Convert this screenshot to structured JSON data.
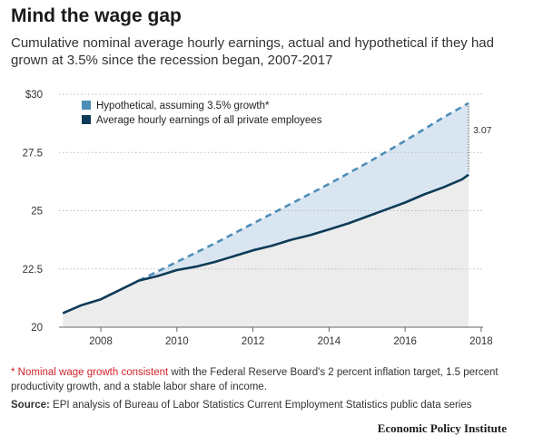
{
  "header": {
    "title": "Mind the wage gap",
    "subtitle": "Cumulative nominal average hourly earnings, actual and hypothetical if they had grown at 3.5% since the recession began, 2007-2017"
  },
  "colors": {
    "actual": "#0d3b57",
    "hypothetical": "#4e8db8",
    "gap_fill": "#d9e6f1",
    "under_fill": "#ececec",
    "gap_label_line": "#555555",
    "note_red": "#d0232a"
  },
  "chart_data": {
    "type": "line",
    "title": "Mind the wage gap",
    "xlabel": "",
    "ylabel": "",
    "xlim": [
      2006.9,
      2018.05
    ],
    "ylim": [
      20,
      30
    ],
    "x_ticks": [
      2008,
      2010,
      2012,
      2014,
      2016,
      2018
    ],
    "y_ticks": [
      {
        "value": 20,
        "label": "20"
      },
      {
        "value": 22.5,
        "label": "22.5"
      },
      {
        "value": 25,
        "label": "25"
      },
      {
        "value": 27.5,
        "label": "27.5"
      },
      {
        "value": 30,
        "label": "$30"
      }
    ],
    "grid": "horizontal-dotted",
    "legend": {
      "position": "top-left",
      "entries": [
        {
          "label": "Hypothetical, assuming 3.5% growth*",
          "series": "hypothetical"
        },
        {
          "label": "Average hourly earnings of all private employees",
          "series": "actual"
        }
      ]
    },
    "series": [
      {
        "name": "Average hourly earnings of all private employees",
        "style": "solid",
        "points": [
          [
            2007.0,
            20.6
          ],
          [
            2007.5,
            20.95
          ],
          [
            2008.0,
            21.2
          ],
          [
            2008.5,
            21.6
          ],
          [
            2009.0,
            22.0
          ],
          [
            2009.5,
            22.2
          ],
          [
            2010.0,
            22.45
          ],
          [
            2010.5,
            22.6
          ],
          [
            2011.0,
            22.8
          ],
          [
            2011.5,
            23.05
          ],
          [
            2012.0,
            23.3
          ],
          [
            2012.5,
            23.5
          ],
          [
            2013.0,
            23.75
          ],
          [
            2013.5,
            23.95
          ],
          [
            2014.0,
            24.2
          ],
          [
            2014.5,
            24.45
          ],
          [
            2015.0,
            24.75
          ],
          [
            2015.5,
            25.05
          ],
          [
            2016.0,
            25.35
          ],
          [
            2016.5,
            25.7
          ],
          [
            2017.0,
            26.0
          ],
          [
            2017.5,
            26.35
          ],
          [
            2017.67,
            26.55
          ]
        ]
      },
      {
        "name": "Hypothetical, assuming 3.5% growth*",
        "style": "dashed",
        "points": [
          [
            2009.0,
            22.0
          ],
          [
            2010.0,
            22.8
          ],
          [
            2011.0,
            23.6
          ],
          [
            2012.0,
            24.45
          ],
          [
            2013.0,
            25.3
          ],
          [
            2014.0,
            26.15
          ],
          [
            2015.0,
            27.05
          ],
          [
            2016.0,
            28.0
          ],
          [
            2017.0,
            29.0
          ],
          [
            2017.67,
            29.62
          ]
        ]
      }
    ],
    "annotations": [
      {
        "text": "3.07",
        "x": 2017.67,
        "y_from": 26.55,
        "y_to": 29.62
      }
    ]
  },
  "footnotes": {
    "note_marker": "* ",
    "note_red": "Nominal wage growth consistent",
    "note_rest": " with the Federal Reserve Board's 2 percent inflation target, 1.5 percent productivity growth, and a stable labor share of income.",
    "source_label": "Source:",
    "source_text": " EPI analysis of Bureau of Labor Statistics Current Employment Statistics public data series"
  },
  "brand": "Economic Policy Institute"
}
